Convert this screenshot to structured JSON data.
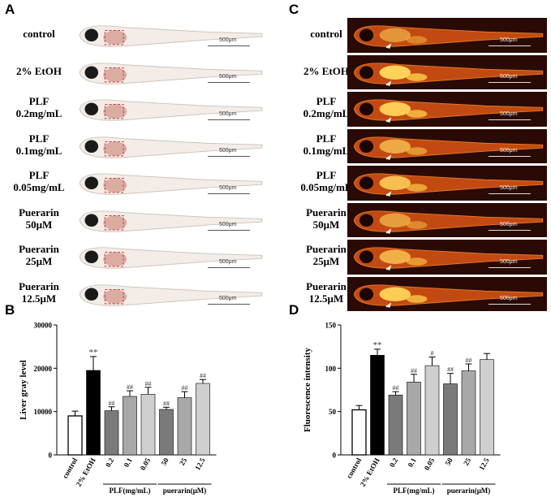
{
  "panels": {
    "a": "A",
    "b": "B",
    "c": "C",
    "d": "D"
  },
  "row_labels": [
    [
      "control"
    ],
    [
      "2% EtOH"
    ],
    [
      "PLF",
      "0.2mg/mL"
    ],
    [
      "PLF",
      "0.1mg/mL"
    ],
    [
      "PLF",
      "0.05mg/mL"
    ],
    [
      "Puerarin",
      "50μM"
    ],
    [
      "Puerarin",
      "25μM"
    ],
    [
      "Puerarin",
      "12.5μM"
    ]
  ],
  "scale_text": "500μm",
  "colors": {
    "dark_bar": "#000000",
    "mid_bar": "#7a7a7a",
    "light_bar": "#a8a8a8",
    "lighter_bar": "#cfcfcf",
    "open_bar": "#ffffff"
  },
  "chart_data": [
    {
      "id": "B",
      "type": "bar",
      "title": "",
      "xlabel": "",
      "ylabel": "Liver gray level",
      "ylim": [
        0,
        30000
      ],
      "yticks": [
        "0",
        "10000",
        "20000",
        "30000"
      ],
      "categories": [
        "control",
        "2% EtOH",
        "0.2",
        "0.1",
        "0.05",
        "50",
        "25",
        "12.5"
      ],
      "values": [
        9000,
        19500,
        10200,
        13500,
        14000,
        10500,
        13200,
        16500
      ],
      "errors": [
        1100,
        3200,
        900,
        1300,
        1600,
        500,
        1400,
        900
      ],
      "marks": [
        "",
        "**",
        "##",
        "##",
        "##",
        "##",
        "##",
        "##"
      ],
      "bar_styles": [
        "open",
        "dark",
        "mid",
        "light",
        "lighter",
        "mid",
        "light",
        "lighter"
      ],
      "groups": [
        {
          "label": "PLF(mg/mL)",
          "from": 2,
          "to": 4
        },
        {
          "label": "puerarin(μM)",
          "from": 5,
          "to": 7
        }
      ]
    },
    {
      "id": "D",
      "type": "bar",
      "title": "",
      "xlabel": "",
      "ylabel": "Fluorescence intensity",
      "ylim": [
        0,
        150
      ],
      "yticks": [
        "0",
        "50",
        "100",
        "150"
      ],
      "categories": [
        "control",
        "2% EtOH",
        "0.2",
        "0.1",
        "0.05",
        "50",
        "25",
        "12.5"
      ],
      "values": [
        52,
        115,
        69,
        84,
        103,
        82,
        97,
        110
      ],
      "errors": [
        5,
        7,
        4,
        9,
        10,
        12,
        8,
        7
      ],
      "marks": [
        "",
        "**",
        "##",
        "##",
        "#",
        "##",
        "##",
        ""
      ],
      "bar_styles": [
        "open",
        "dark",
        "mid",
        "light",
        "lighter",
        "mid",
        "light",
        "lighter"
      ],
      "groups": [
        {
          "label": "PLF(mg/mL)",
          "from": 2,
          "to": 4
        },
        {
          "label": "puerarin(μM)",
          "from": 5,
          "to": 7
        }
      ]
    }
  ]
}
